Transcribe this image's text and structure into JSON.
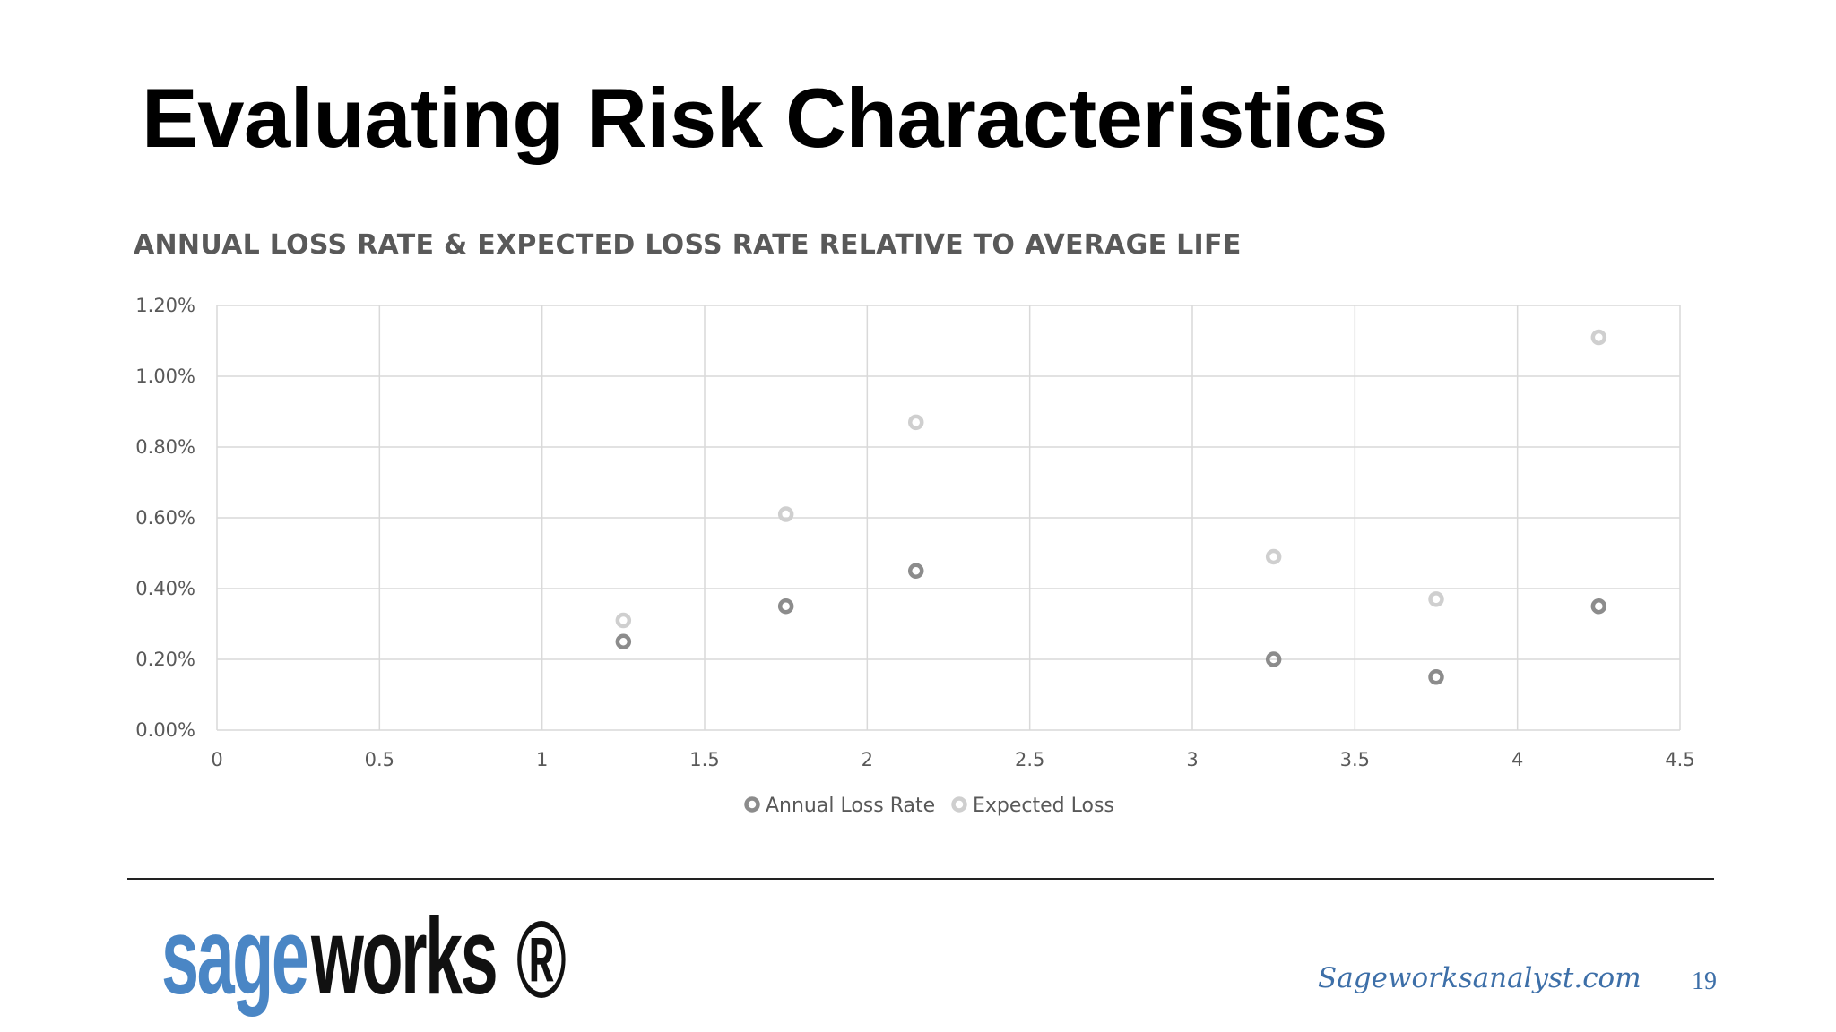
{
  "slide": {
    "title": "Evaluating Risk Characteristics",
    "url": "Sageworksanalyst.com",
    "page_number": "19"
  },
  "logo": {
    "text_blue": "sage",
    "text_dark": "works",
    "mark": "®"
  },
  "colors": {
    "annual_loss_rate": "#8c8c8c",
    "expected_loss": "#cfcfcf",
    "gridline": "#d9d9d9",
    "logo_blue": "#4a86c5",
    "url_blue": "#3d6fa8"
  },
  "chart_data": {
    "type": "scatter",
    "title": "ANNUAL LOSS RATE & EXPECTED LOSS RATE RELATIVE TO AVERAGE LIFE",
    "xlim": [
      0,
      4.5
    ],
    "ylim": [
      0,
      0.012
    ],
    "x_ticks": [
      "0",
      "0.5",
      "1",
      "1.5",
      "2",
      "2.5",
      "3",
      "3.5",
      "4",
      "4.5"
    ],
    "y_ticks": [
      "0.00%",
      "0.20%",
      "0.40%",
      "0.60%",
      "0.80%",
      "1.00%",
      "1.20%"
    ],
    "grid": true,
    "legend_position": "bottom",
    "series": [
      {
        "name": "Annual Loss Rate",
        "x": [
          1.25,
          1.75,
          2.15,
          3.25,
          3.75,
          4.25
        ],
        "y": [
          0.0025,
          0.0035,
          0.0045,
          0.002,
          0.0015,
          0.0035
        ]
      },
      {
        "name": "Expected Loss",
        "x": [
          1.25,
          1.75,
          2.15,
          3.25,
          3.75,
          4.25
        ],
        "y": [
          0.0031,
          0.0061,
          0.0087,
          0.0049,
          0.0037,
          0.0111
        ]
      }
    ]
  }
}
